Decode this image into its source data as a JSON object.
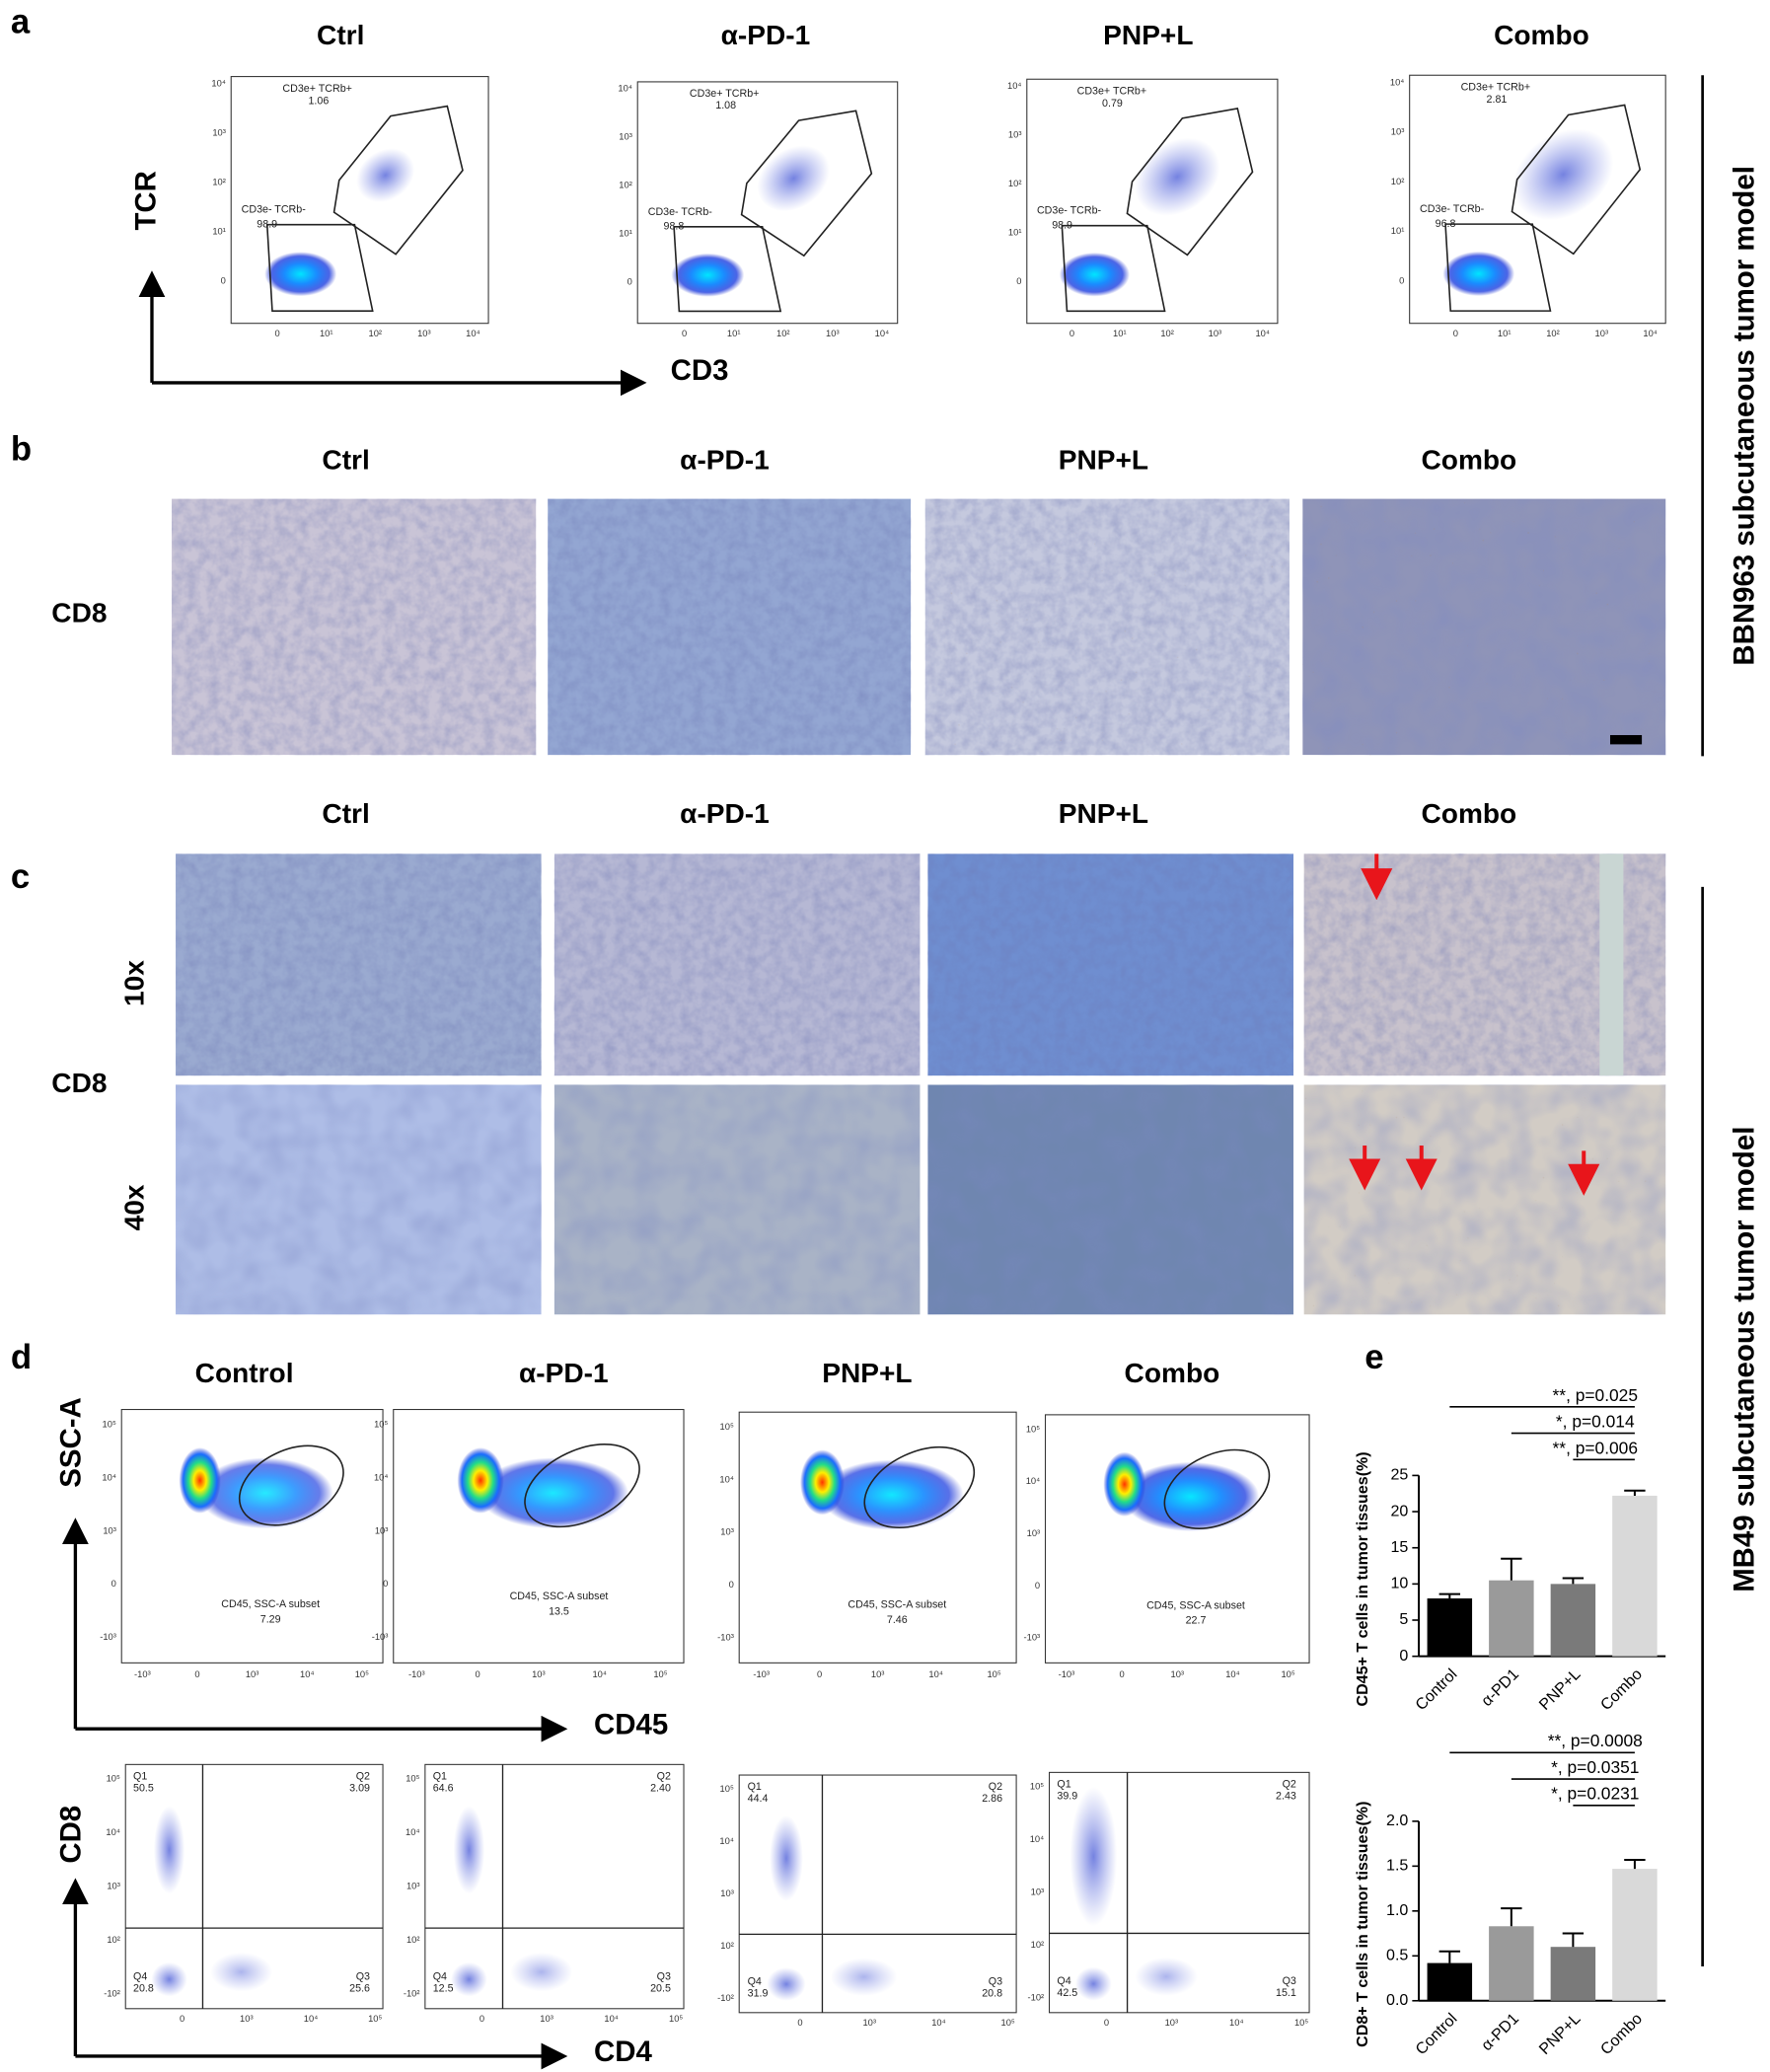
{
  "side_labels": [
    "BBN963 subcutaneous tumor model",
    "MB49 subcutaneous tumor model"
  ],
  "panel_a": {
    "letter": "a",
    "titles": [
      "Ctrl",
      "α-PD-1",
      "PNP+L",
      "Combo"
    ],
    "y_axis": "TCR",
    "x_axis": "CD3",
    "yticks": [
      "10⁴",
      "10³",
      "10²",
      "10¹",
      "0"
    ],
    "xticks": [
      "0",
      "10¹",
      "10²",
      "10³",
      "10⁴"
    ],
    "gate_pos_label": "CD3e+ TCRb+",
    "gate_neg_label": "CD3e- TCRb-",
    "plots": [
      {
        "pos": "1.06",
        "neg": "98.9"
      },
      {
        "pos": "1.08",
        "neg": "98.8"
      },
      {
        "pos": "0.79",
        "neg": "98.9"
      },
      {
        "pos": "2.81",
        "neg": "96.8"
      }
    ]
  },
  "panel_b": {
    "letter": "b",
    "titles": [
      "Ctrl",
      "α-PD-1",
      "PNP+L",
      "Combo"
    ],
    "row_label": "CD8"
  },
  "panel_c": {
    "letter": "c",
    "titles": [
      "Ctrl",
      "α-PD-1",
      "PNP+L",
      "Combo"
    ],
    "row_label": "CD8",
    "rows": [
      "10x",
      "40x"
    ]
  },
  "panel_d": {
    "letter": "d",
    "titles": [
      "Control",
      "α-PD-1",
      "PNP+L",
      "Combo"
    ],
    "gate_y_axis": "SSC-A",
    "gate_x_axis": "CD45",
    "gate_label": "CD45, SSC-A subset",
    "gate_yticks": [
      "10⁵",
      "10⁴",
      "10³",
      "0",
      "-10³"
    ],
    "gate_xticks": [
      "-10³",
      "0",
      "10³",
      "10⁴",
      "10⁵"
    ],
    "gate_values": [
      "7.29",
      "13.5",
      "7.46",
      "22.7"
    ],
    "quad_y_axis": "CD8",
    "quad_x_axis": "CD4",
    "quad_yticks": [
      "10⁵",
      "10⁴",
      "10³",
      "10²",
      "-10²"
    ],
    "quad_xticks": [
      "0",
      "10³",
      "10⁴",
      "10⁵"
    ],
    "quad_names": [
      "Q1",
      "Q2",
      "Q3",
      "Q4"
    ],
    "quadrants": [
      [
        "50.5",
        "3.09",
        "25.6",
        "20.8"
      ],
      [
        "64.6",
        "2.40",
        "20.5",
        "12.5"
      ],
      [
        "44.4",
        "2.86",
        "20.8",
        "31.9"
      ],
      [
        "39.9",
        "2.43",
        "15.1",
        "42.5"
      ]
    ]
  },
  "panel_e": {
    "letter": "e"
  },
  "chart_data": [
    {
      "type": "bar",
      "ylabel": "CD45+ T cells in tumor tissues(%)",
      "categories": [
        "Control",
        "α-PD1",
        "PNP+L",
        "Combo"
      ],
      "values": [
        8,
        10.5,
        10,
        22.2
      ],
      "errors": [
        0.6,
        3,
        0.8,
        0.7
      ],
      "colors": [
        "#000000",
        "#9a9a9a",
        "#7a7a7a",
        "#d9d9d9"
      ],
      "ylim": [
        0,
        25
      ],
      "yticks": [
        0,
        5,
        10,
        15,
        20,
        25
      ],
      "annotations": [
        "**, p=0.025",
        "*, p=0.014",
        "**, p=0.006"
      ]
    },
    {
      "type": "bar",
      "ylabel": "CD8+ T cells in tumor tissues(%)",
      "categories": [
        "Control",
        "α-PD1",
        "PNP+L",
        "Combo"
      ],
      "values": [
        0.42,
        0.83,
        0.6,
        1.47
      ],
      "errors": [
        0.13,
        0.2,
        0.15,
        0.1
      ],
      "colors": [
        "#000000",
        "#9a9a9a",
        "#7a7a7a",
        "#d9d9d9"
      ],
      "ylim": [
        0,
        2
      ],
      "yticks": [
        {
          "value": 0,
          "label": "0.0"
        },
        0.5,
        {
          "value": 1,
          "label": "1.0"
        },
        1.5,
        {
          "value": 2,
          "label": "2.0"
        }
      ],
      "annotations": [
        "**, p=0.0008",
        "*, p=0.0351",
        "*, p=0.0231"
      ]
    }
  ]
}
